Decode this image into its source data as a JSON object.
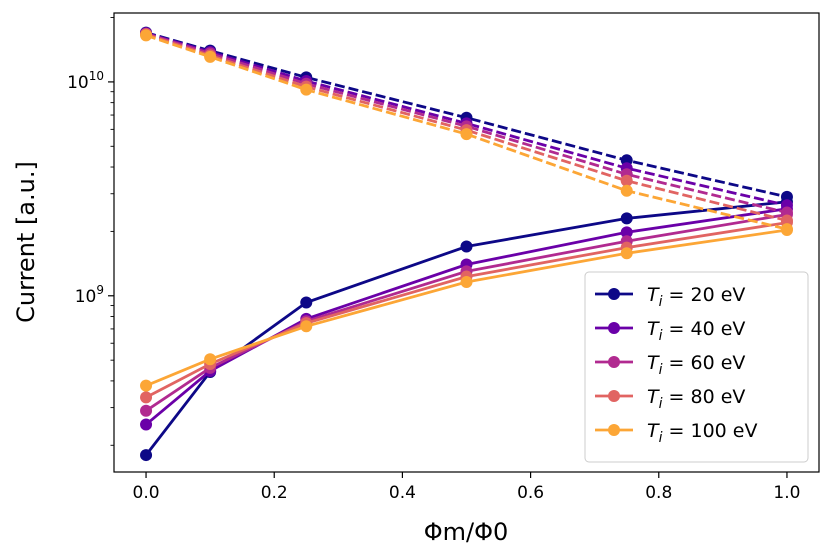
{
  "chart_data": {
    "type": "line",
    "xlabel": "Φm/Φ0",
    "ylabel": "Current [a.u.]",
    "yscale": "log",
    "xlim": [
      -0.05,
      1.05
    ],
    "ylim": [
      150000000,
      21000000000
    ],
    "x": [
      0.0,
      0.1,
      0.25,
      0.5,
      0.75,
      1.0
    ],
    "xticks": [
      0.0,
      0.2,
      0.4,
      0.6,
      0.8,
      1.0
    ],
    "xtick_labels": [
      "0.0",
      "0.2",
      "0.4",
      "0.6",
      "0.8",
      "1.0"
    ],
    "yticks": [
      1000000000,
      10000000000
    ],
    "ytick_labels": [
      {
        "base": "10",
        "exp": "9"
      },
      {
        "base": "10",
        "exp": "10"
      }
    ],
    "legend": {
      "placement": "lower-right",
      "prefix": "T",
      "subscript": "i",
      "equals": " = ",
      "unit": " eV"
    },
    "series": [
      {
        "name": "T_i = 20 eV",
        "legend_value": "20",
        "color": "#0d0887",
        "solid": [
          180000000,
          440000000,
          930000000,
          1700000000,
          2300000000,
          2750000000
        ],
        "dashed": [
          17000000000,
          14000000000,
          10500000000,
          6800000000,
          4300000000,
          2900000000
        ]
      },
      {
        "name": "T_i = 40 eV",
        "legend_value": "40",
        "color": "#6a00a8",
        "solid": [
          250000000,
          445000000,
          780000000,
          1400000000,
          1980000000,
          2550000000
        ],
        "dashed": [
          16900000000,
          13800000000,
          10100000000,
          6400000000,
          3950000000,
          2650000000
        ]
      },
      {
        "name": "T_i = 60 eV",
        "legend_value": "60",
        "color": "#b12a90",
        "solid": [
          290000000,
          460000000,
          760000000,
          1300000000,
          1800000000,
          2400000000
        ],
        "dashed": [
          16800000000,
          13600000000,
          9800000000,
          6200000000,
          3700000000,
          2450000000
        ]
      },
      {
        "name": "T_i = 80 eV",
        "legend_value": "80",
        "color": "#e16462",
        "solid": [
          335000000,
          480000000,
          745000000,
          1230000000,
          1680000000,
          2200000000
        ],
        "dashed": [
          16700000000,
          13300000000,
          9500000000,
          5950000000,
          3450000000,
          2250000000
        ]
      },
      {
        "name": "T_i = 100 eV",
        "legend_value": "100",
        "color": "#fca636",
        "solid": [
          380000000,
          505000000,
          720000000,
          1160000000,
          1580000000,
          2030000000
        ],
        "dashed": [
          16500000000,
          13100000000,
          9200000000,
          5700000000,
          3100000000,
          2050000000
        ]
      }
    ]
  }
}
